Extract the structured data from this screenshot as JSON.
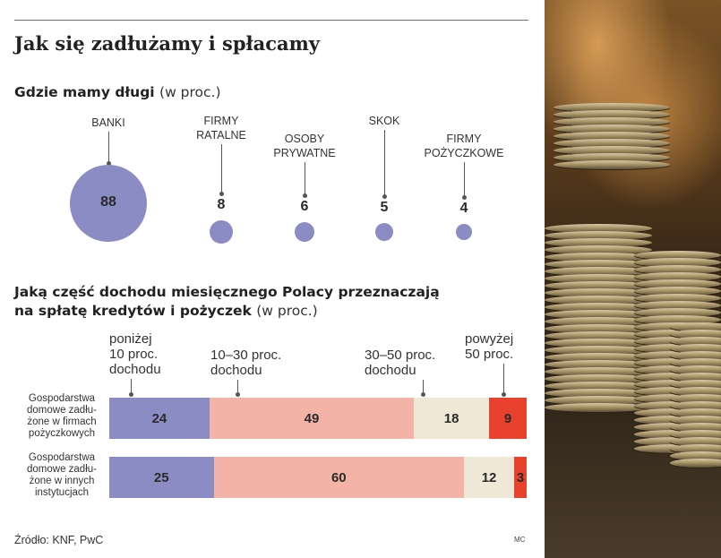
{
  "title": "Jak się zadłużamy i spłacamy",
  "section1": {
    "title": "Gdzie mamy długi",
    "unit": "(w proc.)"
  },
  "section2": {
    "title_line1": "Jaką część dochodu miesięcznego Polacy przeznaczają",
    "title_line2": "na spłatę kredytów i pożyczek",
    "unit": "(w proc.)"
  },
  "source": "Źródło: KNF, PwC",
  "credit": "MC",
  "colors": {
    "bubble": "#8c8cc5",
    "seg1": "#8c8cc5",
    "seg2": "#f3b3a6",
    "seg3": "#efe8d7",
    "seg4": "#e8412d"
  },
  "chart_data": [
    {
      "type": "bubble",
      "title": "Gdzie mamy długi",
      "unit": "(w proc.)",
      "categories": [
        "BANKI",
        "FIRMY RATALNE",
        "OSOBY PRYWATNE",
        "SKOK",
        "FIRMY POŻYCZKOWE"
      ],
      "labels": [
        [
          "BANKI"
        ],
        [
          "FIRMY",
          "RATALNE"
        ],
        [
          "OSOBY",
          "PRYWATNE"
        ],
        [
          "SKOK"
        ],
        [
          "FIRMY",
          "POŻYCZKOWE"
        ]
      ],
      "values": [
        88,
        8,
        6,
        5,
        4
      ]
    },
    {
      "type": "bar",
      "stacked": true,
      "orientation": "horizontal",
      "title": "Jaką część dochodu miesięcznego Polacy przeznaczają na spłatę kredytów i pożyczek",
      "unit": "(w proc.)",
      "categories": [
        "Gospodarstwa domowe zadłużone w firmach pożyczkowych",
        "Gospodarstwa domowe zadłużone w innych instytucjach"
      ],
      "category_lines": [
        [
          "Gospodarstwa",
          "domowe zadłu-",
          "żone w firmach",
          "pożyczkowych"
        ],
        [
          "Gospodarstwa",
          "domowe zadłu-",
          "żone w innych",
          "instytucjach"
        ]
      ],
      "series": [
        {
          "name": "poniżej 10 proc. dochodu",
          "lines": [
            "poniżej",
            "10 proc.",
            "dochodu"
          ],
          "values": [
            24,
            25
          ]
        },
        {
          "name": "10–30 proc. dochodu",
          "lines": [
            "10–30 proc.",
            "dochodu"
          ],
          "values": [
            49,
            60
          ]
        },
        {
          "name": "30–50 proc. dochodu",
          "lines": [
            "30–50 proc.",
            "dochodu"
          ],
          "values": [
            18,
            12
          ]
        },
        {
          "name": "powyżej 50 proc.",
          "lines": [
            "powyżej",
            "50 proc."
          ],
          "values": [
            9,
            3
          ]
        }
      ]
    }
  ]
}
